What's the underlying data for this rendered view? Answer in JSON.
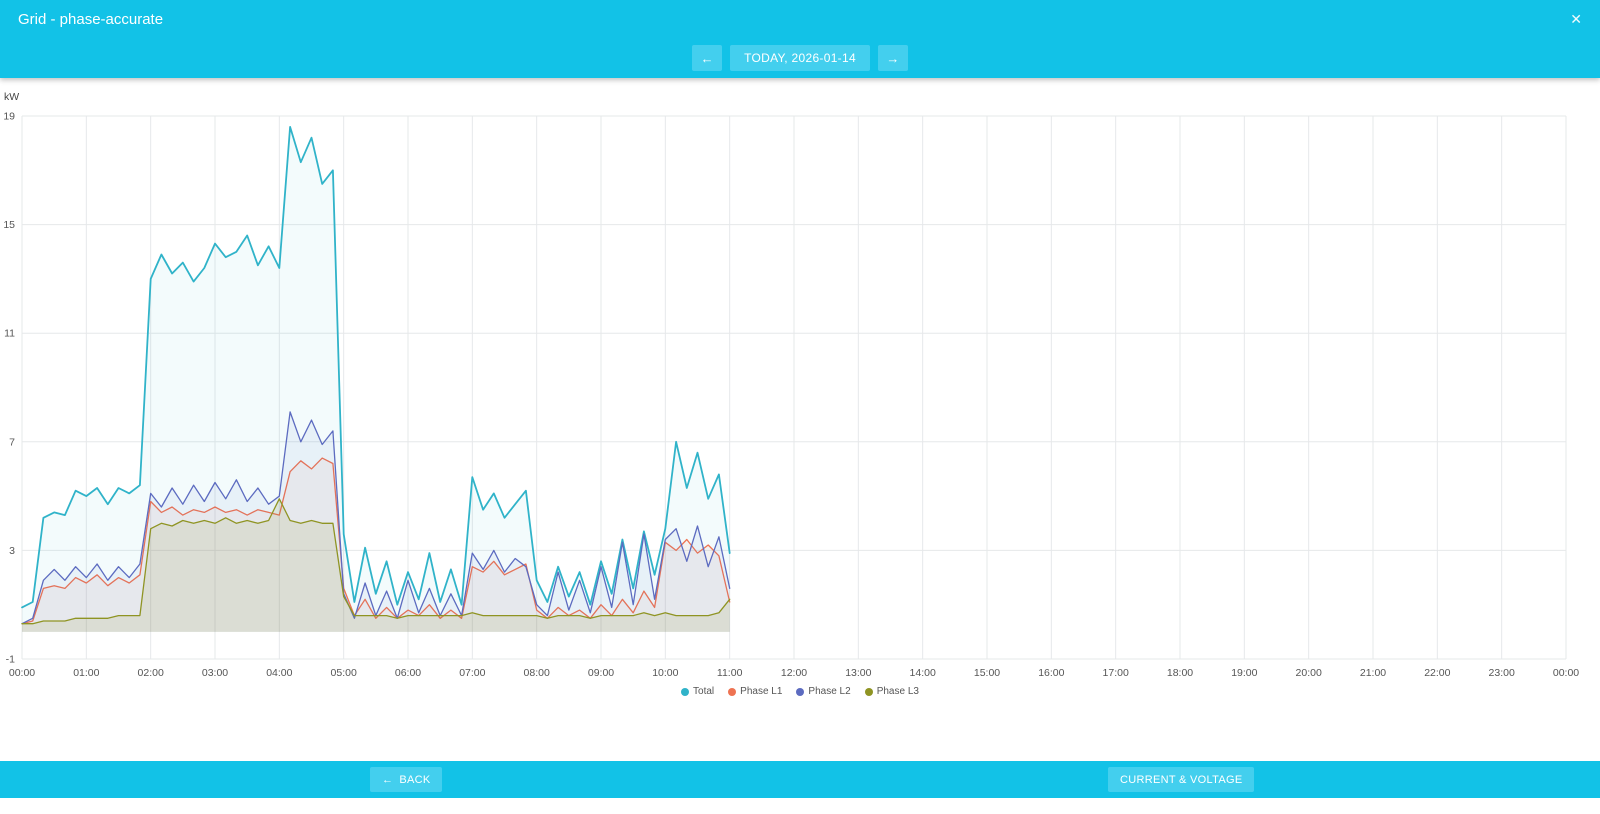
{
  "window": {
    "title": "Grid - phase-accurate",
    "close_label": "✕"
  },
  "nav": {
    "prev_label": "←",
    "date_label": "TODAY, 2026-01-14",
    "next_label": "→"
  },
  "footer": {
    "back_arrow": "←",
    "back_label": "BACK",
    "current_voltage_label": "CURRENT & VOLTAGE"
  },
  "colors": {
    "header": "#12c2e7",
    "button": "#43cfee",
    "grid": "#e6e8ea",
    "total": "#30b3c9",
    "phase_l1": "#ee7352",
    "phase_l2": "#5c6bc0",
    "phase_l3": "#8f9423"
  },
  "chart_data": {
    "type": "line",
    "title": "",
    "ylabel": "kW",
    "xlabel": "",
    "ylim": [
      -1,
      19
    ],
    "yticks": [
      -1,
      3,
      7,
      11,
      15,
      19
    ],
    "x_range_hours": [
      0,
      24
    ],
    "xtick_labels": [
      "00:00",
      "01:00",
      "02:00",
      "03:00",
      "04:00",
      "05:00",
      "06:00",
      "07:00",
      "08:00",
      "09:00",
      "10:00",
      "11:00",
      "12:00",
      "13:00",
      "14:00",
      "15:00",
      "16:00",
      "17:00",
      "18:00",
      "19:00",
      "20:00",
      "21:00",
      "22:00",
      "23:00",
      "00:00"
    ],
    "grid": true,
    "legend_position": "bottom-center",
    "start_minute": 0,
    "step_minutes": 10,
    "series": [
      {
        "name": "Total",
        "color": "#30b3c9",
        "fill_opacity": 0.06,
        "values": [
          0.9,
          1.1,
          4.2,
          4.4,
          4.3,
          5.2,
          5.0,
          5.3,
          4.7,
          5.3,
          5.1,
          5.4,
          13.0,
          13.9,
          13.2,
          13.6,
          12.9,
          13.4,
          14.3,
          13.8,
          14.0,
          14.6,
          13.5,
          14.2,
          13.4,
          18.6,
          17.3,
          18.2,
          16.5,
          17.0,
          3.6,
          1.1,
          3.1,
          1.4,
          2.6,
          1.0,
          2.2,
          1.2,
          2.9,
          1.1,
          2.3,
          1.0,
          5.7,
          4.5,
          5.1,
          4.2,
          4.7,
          5.2,
          1.9,
          1.1,
          2.4,
          1.3,
          2.2,
          1.0,
          2.6,
          1.4,
          3.4,
          1.6,
          3.7,
          2.1,
          3.8,
          7.0,
          5.3,
          6.6,
          4.9,
          5.8,
          2.9
        ]
      },
      {
        "name": "Phase L1",
        "color": "#ee7352",
        "fill_opacity": 0.07,
        "values": [
          0.3,
          0.4,
          1.6,
          1.7,
          1.6,
          2.0,
          1.8,
          2.1,
          1.7,
          2.0,
          1.8,
          2.1,
          4.8,
          4.4,
          4.6,
          4.3,
          4.5,
          4.4,
          4.6,
          4.4,
          4.5,
          4.3,
          4.5,
          4.4,
          4.3,
          5.9,
          6.3,
          6.0,
          6.4,
          6.2,
          1.6,
          0.6,
          1.2,
          0.5,
          0.9,
          0.5,
          0.8,
          0.6,
          1.0,
          0.5,
          0.8,
          0.5,
          2.4,
          2.2,
          2.6,
          2.1,
          2.3,
          2.5,
          0.8,
          0.5,
          0.9,
          0.6,
          0.8,
          0.5,
          1.0,
          0.6,
          1.2,
          0.7,
          1.5,
          0.9,
          3.3,
          3.0,
          3.4,
          2.9,
          3.2,
          2.8,
          1.1
        ]
      },
      {
        "name": "Phase L2",
        "color": "#5c6bc0",
        "fill_opacity": 0.07,
        "values": [
          0.3,
          0.5,
          1.9,
          2.3,
          1.9,
          2.4,
          2.0,
          2.5,
          1.9,
          2.4,
          2.0,
          2.5,
          5.1,
          4.6,
          5.3,
          4.7,
          5.4,
          4.8,
          5.5,
          4.9,
          5.6,
          4.8,
          5.3,
          4.7,
          5.0,
          8.1,
          7.0,
          7.8,
          6.9,
          7.4,
          1.4,
          0.5,
          1.8,
          0.6,
          1.5,
          0.5,
          1.9,
          0.7,
          1.6,
          0.6,
          1.4,
          0.6,
          2.9,
          2.3,
          3.0,
          2.2,
          2.7,
          2.4,
          1.0,
          0.6,
          2.2,
          0.8,
          1.9,
          0.7,
          2.4,
          0.9,
          3.3,
          1.0,
          3.6,
          1.2,
          3.4,
          3.8,
          2.6,
          3.9,
          2.4,
          3.5,
          1.6
        ]
      },
      {
        "name": "Phase L3",
        "color": "#8f9423",
        "fill_opacity": 0.12,
        "values": [
          0.3,
          0.3,
          0.4,
          0.4,
          0.4,
          0.5,
          0.5,
          0.5,
          0.5,
          0.6,
          0.6,
          0.6,
          3.8,
          4.0,
          3.9,
          4.1,
          4.0,
          4.1,
          4.0,
          4.2,
          4.0,
          4.1,
          4.0,
          4.1,
          4.9,
          4.1,
          4.0,
          4.1,
          4.0,
          4.0,
          1.3,
          0.6,
          0.6,
          0.6,
          0.6,
          0.5,
          0.6,
          0.6,
          0.6,
          0.6,
          0.6,
          0.6,
          0.7,
          0.6,
          0.6,
          0.6,
          0.6,
          0.6,
          0.6,
          0.5,
          0.6,
          0.6,
          0.6,
          0.5,
          0.6,
          0.6,
          0.6,
          0.6,
          0.7,
          0.6,
          0.7,
          0.6,
          0.6,
          0.6,
          0.6,
          0.7,
          1.2
        ]
      }
    ],
    "legend": [
      "Total",
      "Phase L1",
      "Phase L2",
      "Phase L3"
    ]
  }
}
